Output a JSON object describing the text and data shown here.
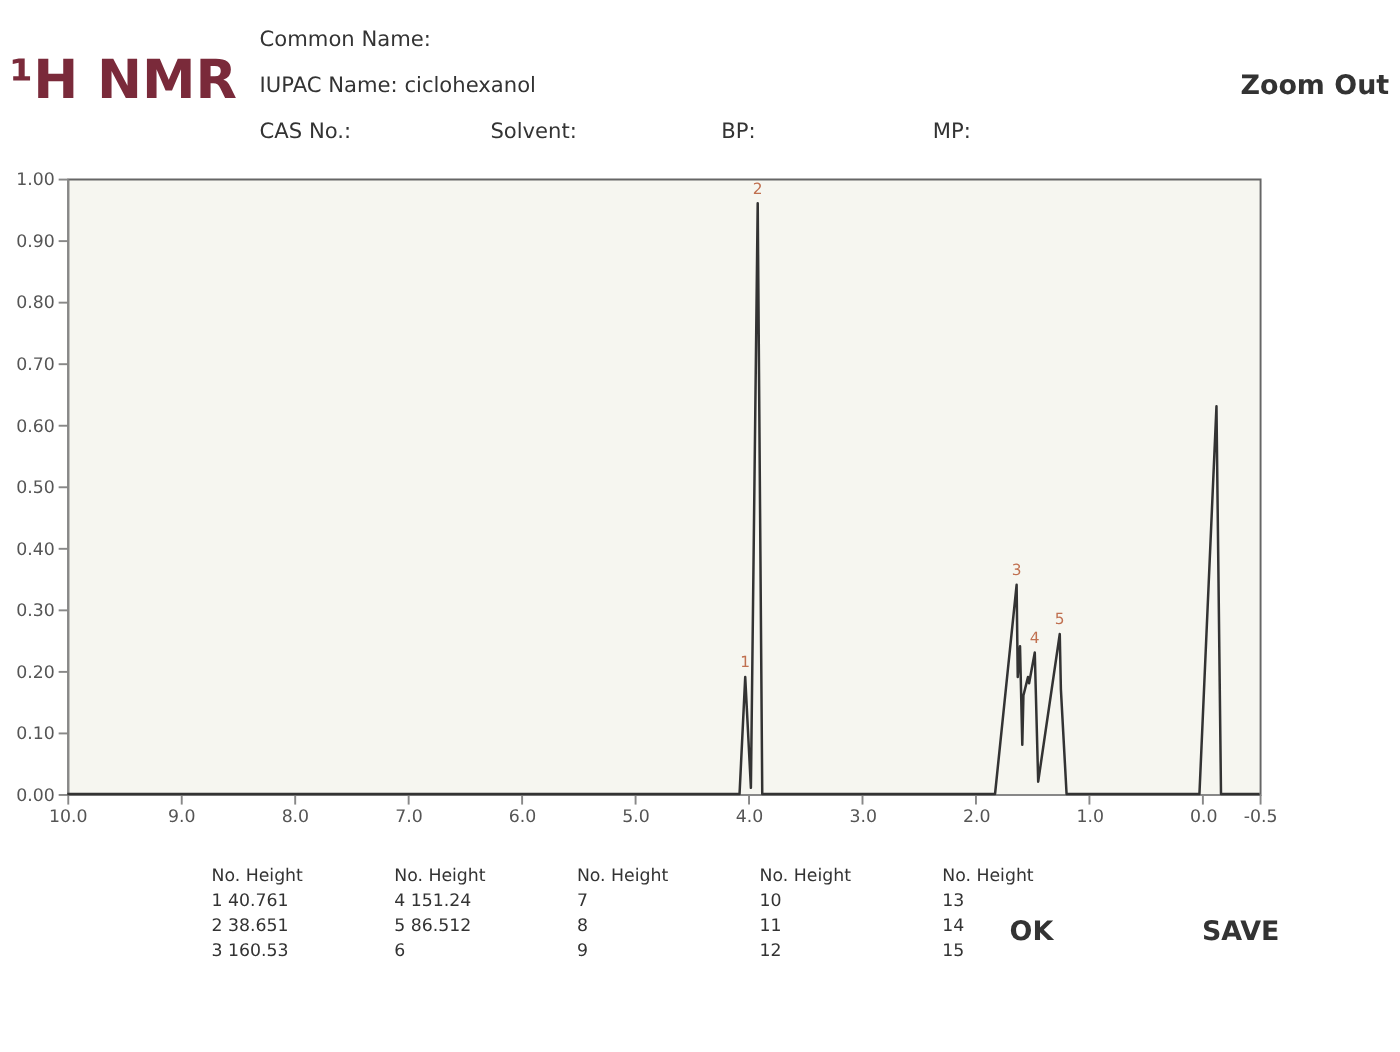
{
  "chart_data": {
    "type": "line",
    "title": "¹H NMR",
    "series": [
      {
        "color": "#333333",
        "x": [
          10.0,
          4.08,
          4.03,
          3.98,
          3.92,
          3.88,
          1.83,
          1.64,
          1.63,
          1.61,
          1.59,
          1.58,
          1.54,
          1.53,
          1.48,
          1.45,
          1.26,
          1.25,
          1.2,
          0.03,
          -0.12,
          -0.16,
          -0.5
        ],
        "values": [
          0,
          0,
          0.19,
          0.01,
          0.96,
          0,
          0,
          0.34,
          0.19,
          0.24,
          0.08,
          0.16,
          0.19,
          0.18,
          0.23,
          0.02,
          0.26,
          0.17,
          0,
          0,
          0.63,
          0,
          0
        ]
      }
    ],
    "xlim": [
      10.0,
      -0.5
    ],
    "xticks": [
      {
        "value": 10,
        "label": "10.0"
      },
      {
        "value": 9,
        "label": "9.0"
      },
      {
        "value": 8,
        "label": "8.0"
      },
      {
        "value": 7,
        "label": "7.0"
      },
      {
        "value": 6,
        "label": "6.0"
      },
      {
        "value": 5,
        "label": "5.0"
      },
      {
        "value": 4,
        "label": "4.0"
      },
      {
        "value": 3,
        "label": "3.0"
      },
      {
        "value": 2,
        "label": "2.0"
      },
      {
        "value": 1,
        "label": "1.0"
      },
      {
        "value": 0,
        "label": "0.0"
      },
      {
        "value": -0.5,
        "label": "-0.5"
      }
    ],
    "ylim": [
      0,
      1.0
    ],
    "yticks": [
      {
        "value": 0,
        "label": "0.00"
      },
      {
        "value": 0.1,
        "label": "0.10"
      },
      {
        "value": 0.2,
        "label": "0.20"
      },
      {
        "value": 0.3,
        "label": "0.30"
      },
      {
        "value": 0.4,
        "label": "0.40"
      },
      {
        "value": 0.5,
        "label": "0.50"
      },
      {
        "value": 0.6,
        "label": "0.60"
      },
      {
        "value": 0.7,
        "label": "0.70"
      },
      {
        "value": 0.8,
        "label": "0.80"
      },
      {
        "value": 0.9,
        "label": "0.90"
      },
      {
        "value": 1.0,
        "label": "1.00"
      }
    ],
    "grid": false,
    "annotations": [
      "Common Name:",
      "IUPAC Name: ciclohexanol",
      "CAS No.:",
      "Solvent:",
      "BP:",
      "MP:",
      "Zoom Out",
      "OK",
      "SAVE",
      "No.  Height",
      "1  40.761",
      "2  38.651",
      "3  160.53",
      "No.  Height",
      "4  151.24",
      "5  86.512",
      "6",
      "No.  Height",
      "7",
      "8",
      "9",
      "No.  Height",
      "10",
      "11",
      "12",
      "No.  Height",
      "13",
      "14",
      "15",
      {
        "text": "1",
        "x": 4.03,
        "y": 0.19
      },
      {
        "text": "2",
        "x": 3.92,
        "y": 0.96
      },
      {
        "text": "3",
        "x": 1.64,
        "y": 0.34
      },
      {
        "text": "4",
        "x": 1.48,
        "y": 0.23
      },
      {
        "text": "5",
        "x": 1.26,
        "y": 0.26
      }
    ]
  }
}
